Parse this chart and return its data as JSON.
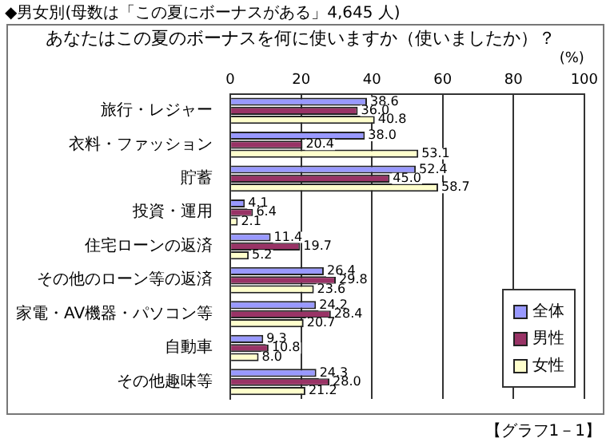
{
  "chart_data": {
    "type": "bar",
    "orientation": "horizontal",
    "title": "あなたはこの夏のボーナスを何に使いますか（使いましたか）？",
    "subtitle": "◆男女別(母数は「この夏にボーナスがある」4,645 人)",
    "xlabel": "(%)",
    "categories": [
      "旅行・レジャー",
      "衣料・ファッション",
      "貯蓄",
      "投資・運用",
      "住宅ローンの返済",
      "その他のローン等の返済",
      "家電・AV機器・パソコン等",
      "自動車",
      "その他趣味等"
    ],
    "series": [
      {
        "name": "全体",
        "color": "#9999ff",
        "values": [
          38.6,
          38.0,
          52.4,
          4.1,
          11.4,
          26.4,
          24.2,
          9.3,
          24.3
        ],
        "value_labels": [
          "38.6",
          "38.0",
          "52.4",
          "4.1",
          "11.4",
          "26.4",
          "24.2",
          "9.3",
          "24.3"
        ]
      },
      {
        "name": "男性",
        "color": "#993366",
        "values": [
          36.0,
          20.4,
          45.0,
          6.4,
          19.7,
          29.8,
          28.4,
          10.8,
          28.0
        ],
        "value_labels": [
          "36.0",
          "20.4",
          "45.0",
          "6.4",
          "19.7",
          "29.8",
          "28.4",
          "10.8",
          "28.0"
        ]
      },
      {
        "name": "女性",
        "color": "#ffffcc",
        "values": [
          40.8,
          53.1,
          58.7,
          2.1,
          5.2,
          23.6,
          20.7,
          8.0,
          21.2
        ],
        "value_labels": [
          "40.8",
          "53.1",
          "58.7",
          "2.1",
          "5.2",
          "23.6",
          "20.7",
          "8.0",
          "21.2"
        ]
      }
    ],
    "xlim": [
      0,
      100
    ],
    "xticks": [
      0,
      20,
      40,
      60,
      80,
      100
    ],
    "grid": "x",
    "legend": "bottom right",
    "annotations": [
      "【グラフ1－1】"
    ]
  }
}
